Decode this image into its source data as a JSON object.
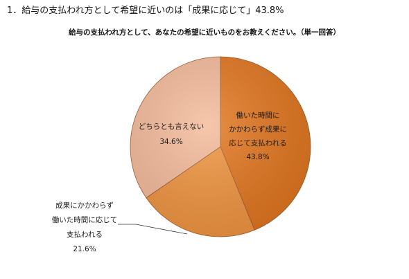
{
  "page": {
    "heading": "1．給与の支払われ方として希望に近いのは「成果に応じて」43.8%"
  },
  "chart_data": {
    "type": "pie",
    "title": "給与の支払われ方として、あなたの希望に近いものをお教えください。（単一回答）",
    "slices": [
      {
        "label_lines": [
          "働いた時間に",
          "かかわらず成果に",
          "応じて支払われる"
        ],
        "value": 43.8,
        "value_label": "43.8%",
        "color": "#E3761E"
      },
      {
        "label_lines": [
          "成果にかかわらず",
          "働いた時間に応じて",
          "支払われる"
        ],
        "value": 21.6,
        "value_label": "21.6%",
        "color": "#F2953F"
      },
      {
        "label_lines": [
          "どちらとも言えない"
        ],
        "value": 34.6,
        "value_label": "34.6%",
        "color": "#F5BB9A"
      }
    ]
  }
}
